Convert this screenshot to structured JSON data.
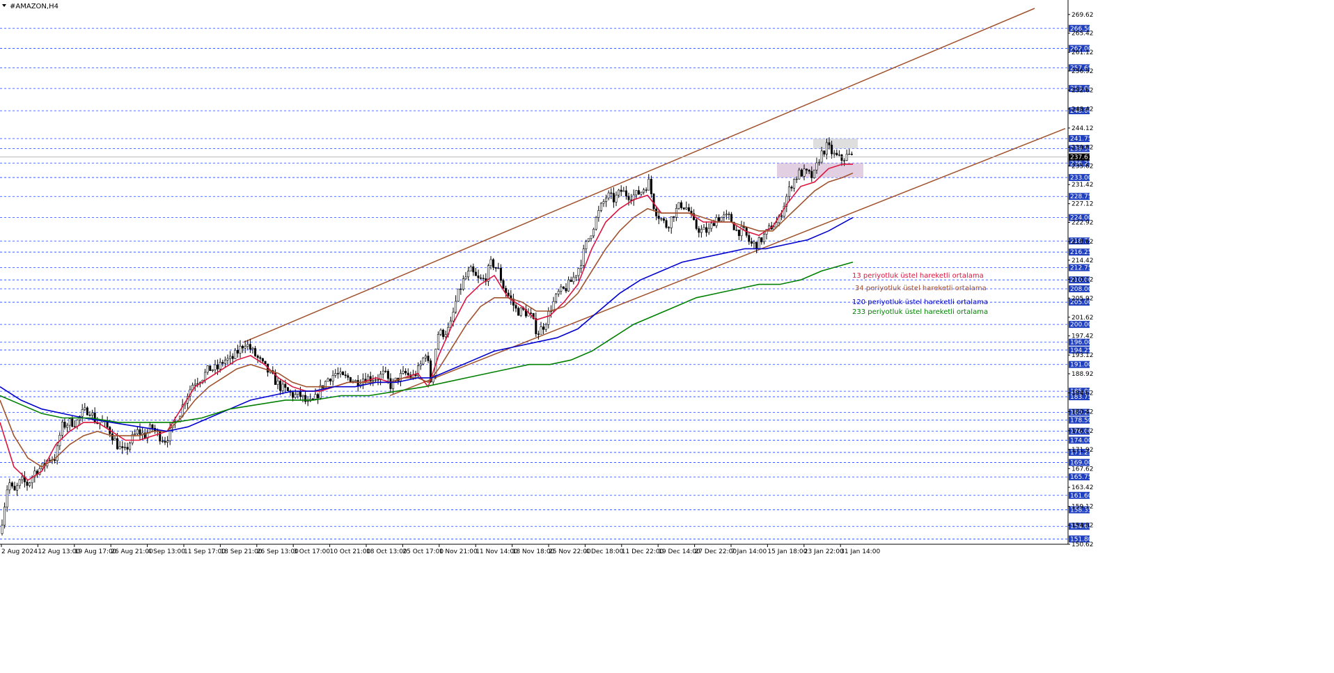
{
  "chart_data": {
    "type": "candlestick",
    "title": "#AMAZON,H4",
    "ylim": [
      150.62,
      271.0
    ],
    "current_price": 237.61,
    "x_ticks": [
      "2 Aug 2024",
      "12 Aug 13:00",
      "19 Aug 17:00",
      "26 Aug 21:00",
      "4 Sep 13:00",
      "11 Sep 17:00",
      "18 Sep 21:00",
      "26 Sep 13:00",
      "3 Oct 17:00",
      "10 Oct 21:00",
      "18 Oct 13:00",
      "25 Oct 17:00",
      "1 Nov 21:00",
      "11 Nov 14:00",
      "18 Nov 18:00",
      "25 Nov 22:00",
      "4 Dec 18:00",
      "11 Dec 22:00",
      "19 Dec 14:00",
      "27 Dec 22:00",
      "7 Jan 14:00",
      "15 Jan 18:00",
      "23 Jan 22:00",
      "31 Jan 14:00"
    ],
    "y_ticks": [
      "269.62",
      "265.42",
      "261.12",
      "256.92",
      "252.62",
      "248.42",
      "244.12",
      "239.82",
      "235.62",
      "231.42",
      "227.12",
      "222.92",
      "218.62",
      "214.42",
      "210.12",
      "205.92",
      "201.62",
      "197.42",
      "193.12",
      "188.92",
      "184.62",
      "180.42",
      "176.12",
      "171.92",
      "167.62",
      "163.42",
      "159.12",
      "154.92",
      "150.62"
    ],
    "levels": [
      "266.50",
      "262.00",
      "257.65",
      "253.00",
      "248.00",
      "241.75",
      "239.50",
      "236.25",
      "233.00",
      "228.75",
      "224.00",
      "218.75",
      "216.25",
      "212.75",
      "210.00",
      "208.00",
      "205.00",
      "200.00",
      "196.00",
      "194.25",
      "191.00",
      "185.00",
      "183.75",
      "180.25",
      "178.50",
      "176.00",
      "174.00",
      "171.25",
      "169.00",
      "165.75",
      "161.60",
      "158.35",
      "154.65",
      "151.80"
    ],
    "legend": [
      {
        "name": "13 periyotluk üstel hareketli ortalama",
        "color": "#dc143c"
      },
      {
        "name": "34 periyotluk üstel hareketli ortalama",
        "color": "#a0522d"
      },
      {
        "name": "120 periyotluk üstel hareketli ortalama",
        "color": "#0000cd"
      },
      {
        "name": "233 periyotluk üstel hareketli ortalama",
        "color": "#008000"
      }
    ],
    "ohlc_path": [
      [
        0,
        153
      ],
      [
        12,
        165
      ],
      [
        20,
        162
      ],
      [
        30,
        165
      ],
      [
        40,
        164
      ],
      [
        50,
        167
      ],
      [
        62,
        168
      ],
      [
        70,
        170
      ],
      [
        80,
        170
      ],
      [
        88,
        177
      ],
      [
        100,
        178
      ],
      [
        110,
        178
      ],
      [
        118,
        180
      ],
      [
        128,
        181
      ],
      [
        138,
        178
      ],
      [
        148,
        178
      ],
      [
        158,
        176
      ],
      [
        168,
        173
      ],
      [
        178,
        171
      ],
      [
        188,
        174
      ],
      [
        198,
        176
      ],
      [
        208,
        175
      ],
      [
        218,
        177
      ],
      [
        228,
        175
      ],
      [
        238,
        174
      ],
      [
        248,
        177
      ],
      [
        258,
        180
      ],
      [
        268,
        184
      ],
      [
        278,
        187
      ],
      [
        290,
        188
      ],
      [
        300,
        190
      ],
      [
        312,
        190
      ],
      [
        322,
        192
      ],
      [
        332,
        192
      ],
      [
        342,
        194
      ],
      [
        352,
        196
      ],
      [
        362,
        194
      ],
      [
        372,
        192
      ],
      [
        382,
        190
      ],
      [
        392,
        188
      ],
      [
        402,
        186
      ],
      [
        412,
        185
      ],
      [
        422,
        184
      ],
      [
        432,
        184
      ],
      [
        442,
        182
      ],
      [
        452,
        183
      ],
      [
        462,
        186
      ],
      [
        472,
        188
      ],
      [
        482,
        189
      ],
      [
        492,
        188
      ],
      [
        502,
        188
      ],
      [
        512,
        187
      ],
      [
        522,
        188
      ],
      [
        532,
        188
      ],
      [
        542,
        188
      ],
      [
        552,
        189
      ],
      [
        562,
        186
      ],
      [
        572,
        188
      ],
      [
        582,
        189
      ],
      [
        592,
        188
      ],
      [
        602,
        190
      ],
      [
        612,
        194
      ],
      [
        620,
        186
      ],
      [
        628,
        198
      ],
      [
        636,
        198
      ],
      [
        646,
        199
      ],
      [
        656,
        206
      ],
      [
        666,
        210
      ],
      [
        676,
        212
      ],
      [
        686,
        210
      ],
      [
        696,
        210
      ],
      [
        706,
        214
      ],
      [
        716,
        212
      ],
      [
        724,
        208
      ],
      [
        732,
        206
      ],
      [
        742,
        203
      ],
      [
        752,
        203
      ],
      [
        762,
        202
      ],
      [
        772,
        198
      ],
      [
        782,
        200
      ],
      [
        792,
        204
      ],
      [
        802,
        207
      ],
      [
        812,
        208
      ],
      [
        822,
        210
      ],
      [
        832,
        213
      ],
      [
        842,
        218
      ],
      [
        852,
        222
      ],
      [
        862,
        226
      ],
      [
        872,
        229
      ],
      [
        882,
        228
      ],
      [
        892,
        230
      ],
      [
        902,
        229
      ],
      [
        912,
        229
      ],
      [
        922,
        230
      ],
      [
        932,
        232
      ],
      [
        940,
        226
      ],
      [
        948,
        224
      ],
      [
        958,
        222
      ],
      [
        968,
        225
      ],
      [
        978,
        227
      ],
      [
        988,
        226
      ],
      [
        998,
        222
      ],
      [
        1008,
        221
      ],
      [
        1018,
        221
      ],
      [
        1028,
        224
      ],
      [
        1038,
        224
      ],
      [
        1048,
        224
      ],
      [
        1058,
        221
      ],
      [
        1068,
        221
      ],
      [
        1078,
        218
      ],
      [
        1088,
        218
      ],
      [
        1098,
        220
      ],
      [
        1108,
        222
      ],
      [
        1118,
        223
      ],
      [
        1128,
        228
      ],
      [
        1138,
        232
      ],
      [
        1148,
        234
      ],
      [
        1158,
        234
      ],
      [
        1168,
        233
      ],
      [
        1178,
        238
      ],
      [
        1188,
        240
      ],
      [
        1198,
        238
      ],
      [
        1208,
        237
      ],
      [
        1218,
        238
      ],
      [
        1225,
        237.61
      ]
    ],
    "ema_13": [
      [
        0,
        178
      ],
      [
        20,
        168
      ],
      [
        40,
        165
      ],
      [
        60,
        167
      ],
      [
        80,
        173
      ],
      [
        100,
        176
      ],
      [
        120,
        178
      ],
      [
        140,
        178
      ],
      [
        160,
        176
      ],
      [
        180,
        174
      ],
      [
        200,
        174
      ],
      [
        220,
        175
      ],
      [
        240,
        176
      ],
      [
        260,
        181
      ],
      [
        280,
        186
      ],
      [
        300,
        188
      ],
      [
        320,
        190
      ],
      [
        340,
        192
      ],
      [
        360,
        193
      ],
      [
        380,
        191
      ],
      [
        400,
        188
      ],
      [
        420,
        186
      ],
      [
        440,
        185
      ],
      [
        460,
        185
      ],
      [
        480,
        186
      ],
      [
        500,
        187
      ],
      [
        520,
        187
      ],
      [
        540,
        188
      ],
      [
        560,
        187
      ],
      [
        580,
        188
      ],
      [
        600,
        189
      ],
      [
        615,
        186
      ],
      [
        630,
        193
      ],
      [
        650,
        200
      ],
      [
        670,
        206
      ],
      [
        690,
        209
      ],
      [
        710,
        211
      ],
      [
        730,
        206
      ],
      [
        750,
        204
      ],
      [
        770,
        201
      ],
      [
        790,
        202
      ],
      [
        810,
        205
      ],
      [
        830,
        209
      ],
      [
        850,
        217
      ],
      [
        870,
        223
      ],
      [
        890,
        226
      ],
      [
        910,
        228
      ],
      [
        930,
        229
      ],
      [
        950,
        225
      ],
      [
        970,
        225
      ],
      [
        990,
        225
      ],
      [
        1010,
        223
      ],
      [
        1030,
        223
      ],
      [
        1050,
        223
      ],
      [
        1070,
        221
      ],
      [
        1090,
        220
      ],
      [
        1110,
        222
      ],
      [
        1130,
        227
      ],
      [
        1150,
        231
      ],
      [
        1170,
        232
      ],
      [
        1190,
        235
      ],
      [
        1210,
        236
      ],
      [
        1225,
        236
      ]
    ],
    "ema_34": [
      [
        0,
        183
      ],
      [
        20,
        175
      ],
      [
        40,
        170
      ],
      [
        60,
        168
      ],
      [
        80,
        170
      ],
      [
        100,
        173
      ],
      [
        120,
        175
      ],
      [
        140,
        176
      ],
      [
        160,
        175
      ],
      [
        180,
        175
      ],
      [
        200,
        175
      ],
      [
        220,
        176
      ],
      [
        240,
        176
      ],
      [
        260,
        179
      ],
      [
        280,
        183
      ],
      [
        300,
        186
      ],
      [
        320,
        188
      ],
      [
        340,
        190
      ],
      [
        360,
        191
      ],
      [
        380,
        190
      ],
      [
        400,
        189
      ],
      [
        420,
        187
      ],
      [
        440,
        186
      ],
      [
        460,
        186
      ],
      [
        480,
        186
      ],
      [
        500,
        187
      ],
      [
        520,
        187
      ],
      [
        540,
        187
      ],
      [
        560,
        187
      ],
      [
        580,
        188
      ],
      [
        600,
        188
      ],
      [
        615,
        187
      ],
      [
        630,
        190
      ],
      [
        650,
        195
      ],
      [
        670,
        200
      ],
      [
        690,
        204
      ],
      [
        710,
        206
      ],
      [
        730,
        206
      ],
      [
        750,
        205
      ],
      [
        770,
        203
      ],
      [
        790,
        203
      ],
      [
        810,
        204
      ],
      [
        830,
        207
      ],
      [
        850,
        212
      ],
      [
        870,
        217
      ],
      [
        890,
        221
      ],
      [
        910,
        224
      ],
      [
        930,
        226
      ],
      [
        950,
        225
      ],
      [
        970,
        225
      ],
      [
        990,
        225
      ],
      [
        1010,
        224
      ],
      [
        1030,
        223
      ],
      [
        1050,
        223
      ],
      [
        1070,
        222
      ],
      [
        1090,
        221
      ],
      [
        1110,
        221
      ],
      [
        1130,
        224
      ],
      [
        1150,
        227
      ],
      [
        1170,
        230
      ],
      [
        1190,
        232
      ],
      [
        1210,
        233
      ],
      [
        1225,
        234
      ]
    ],
    "ema_120": [
      [
        0,
        186
      ],
      [
        30,
        183
      ],
      [
        60,
        181
      ],
      [
        90,
        180
      ],
      [
        120,
        179
      ],
      [
        160,
        178
      ],
      [
        200,
        177
      ],
      [
        240,
        176
      ],
      [
        270,
        177
      ],
      [
        300,
        179
      ],
      [
        330,
        181
      ],
      [
        360,
        183
      ],
      [
        390,
        184
      ],
      [
        420,
        185
      ],
      [
        450,
        185
      ],
      [
        480,
        186
      ],
      [
        510,
        186
      ],
      [
        540,
        187
      ],
      [
        570,
        187
      ],
      [
        600,
        188
      ],
      [
        620,
        188
      ],
      [
        650,
        190
      ],
      [
        680,
        192
      ],
      [
        710,
        194
      ],
      [
        740,
        195
      ],
      [
        770,
        196
      ],
      [
        800,
        197
      ],
      [
        830,
        199
      ],
      [
        860,
        203
      ],
      [
        890,
        207
      ],
      [
        920,
        210
      ],
      [
        950,
        212
      ],
      [
        980,
        214
      ],
      [
        1010,
        215
      ],
      [
        1040,
        216
      ],
      [
        1070,
        217
      ],
      [
        1100,
        217
      ],
      [
        1130,
        218
      ],
      [
        1160,
        219
      ],
      [
        1190,
        221
      ],
      [
        1225,
        224
      ]
    ],
    "ema_233": [
      [
        0,
        184
      ],
      [
        30,
        182
      ],
      [
        60,
        180
      ],
      [
        90,
        179
      ],
      [
        130,
        179
      ],
      [
        170,
        178
      ],
      [
        210,
        178
      ],
      [
        250,
        178
      ],
      [
        290,
        179
      ],
      [
        330,
        181
      ],
      [
        370,
        182
      ],
      [
        410,
        183
      ],
      [
        450,
        183
      ],
      [
        490,
        184
      ],
      [
        530,
        184
      ],
      [
        570,
        185
      ],
      [
        610,
        186
      ],
      [
        640,
        187
      ],
      [
        670,
        188
      ],
      [
        700,
        189
      ],
      [
        730,
        190
      ],
      [
        760,
        191
      ],
      [
        790,
        191
      ],
      [
        820,
        192
      ],
      [
        850,
        194
      ],
      [
        880,
        197
      ],
      [
        910,
        200
      ],
      [
        940,
        202
      ],
      [
        970,
        204
      ],
      [
        1000,
        206
      ],
      [
        1030,
        207
      ],
      [
        1060,
        208
      ],
      [
        1090,
        209
      ],
      [
        1120,
        209
      ],
      [
        1150,
        210
      ],
      [
        1180,
        212
      ],
      [
        1225,
        214
      ]
    ],
    "channel_upper": [
      [
        350,
        196
      ],
      [
        1486,
        271
      ]
    ],
    "channel_lower": [
      [
        560,
        184
      ],
      [
        1530,
        244
      ]
    ],
    "zones": [
      {
        "x0": 1168,
        "x1": 1232,
        "y0": 239.5,
        "y1": 241.75,
        "color": "#d3d3d3"
      },
      {
        "x0": 1116,
        "x1": 1240,
        "y0": 233.0,
        "y1": 236.25,
        "color": "#d8bfd8"
      }
    ]
  }
}
